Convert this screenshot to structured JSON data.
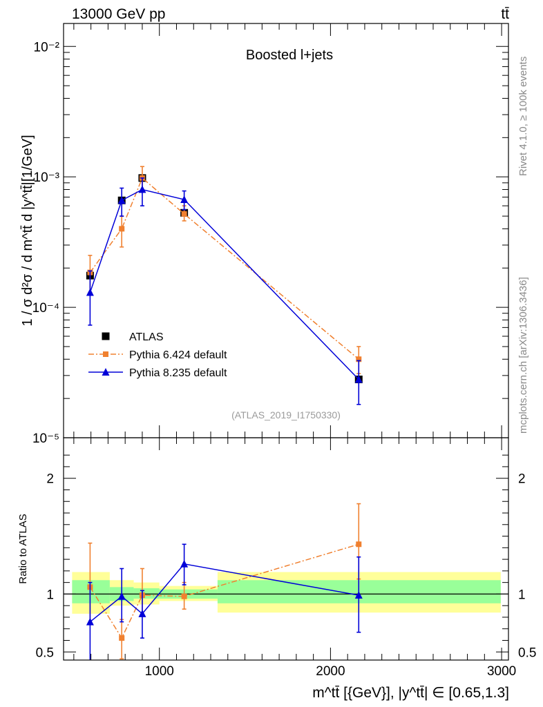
{
  "header": {
    "energy_label": "13000 GeV pp",
    "process_label": "tt̄"
  },
  "side_labels": {
    "rivet": "Rivet 4.1.0, ≥ 100k events",
    "mcplots": "mcplots.cern.ch [arXiv:1306.3436]"
  },
  "chart_data": [
    {
      "panel": "main",
      "type": "scatter",
      "title": "Boosted l+jets",
      "analysis_id": "(ATLAS_2019_I1750330)",
      "ylabel": "1 / σ d²σ / d m^tt̄ d |y^tt̄|[1/GeV]",
      "yscale": "log",
      "ylim": [
        1e-05,
        0.015
      ],
      "xlim": [
        440,
        3040
      ],
      "y_tick_labels": [
        "10⁻⁵",
        "10⁻⁴",
        "10⁻³",
        "10⁻²"
      ],
      "y_tick_values": [
        1e-05,
        0.0001,
        0.001,
        0.01
      ],
      "legend_position": "lower-left",
      "series": [
        {
          "name": "ATLAS",
          "color": "#000000",
          "marker": "square",
          "x": [
            595,
            780,
            900,
            1145,
            2165
          ],
          "y": [
            0.000175,
            0.00066,
            0.00098,
            0.00053,
            2.8e-05
          ]
        },
        {
          "name": "Pythia 6.424 default",
          "color": "#f0802f",
          "marker": "square",
          "line": "dash-dot",
          "x": [
            595,
            780,
            900,
            1145,
            2165
          ],
          "y": [
            0.000185,
            0.0004,
            0.00098,
            0.00052,
            4e-05
          ],
          "yerr_low": [
            0.00013,
            0.00029,
            0.0008,
            0.00046,
            3.1e-05
          ],
          "yerr_high": [
            0.00025,
            0.0005,
            0.0012,
            0.0006,
            5e-05
          ]
        },
        {
          "name": "Pythia 8.235 default",
          "color": "#0000d8",
          "marker": "triangle",
          "line": "solid",
          "x": [
            595,
            780,
            900,
            1145,
            2165
          ],
          "y": [
            0.00013,
            0.00066,
            0.0008,
            0.00067,
            2.8e-05
          ],
          "yerr_low": [
            7.3e-05,
            0.0005,
            0.0006,
            0.00056,
            1.8e-05
          ],
          "yerr_high": [
            0.00019,
            0.00082,
            0.00098,
            0.00078,
            3.9e-05
          ]
        }
      ]
    },
    {
      "panel": "ratio",
      "type": "scatter",
      "ylabel": "Ratio to ATLAS",
      "xlabel": "m^tt̄ [{GeV}], |y^tt̄| ∈ [0.65,1.3]",
      "ylim": [
        0.43,
        2.35
      ],
      "xlim": [
        440,
        3040
      ],
      "x_ticks": [
        1000,
        2000,
        3000
      ],
      "x_tick_labels": [
        "1000",
        "2000",
        "3000"
      ],
      "y_tick_labels": [
        "0.5",
        "1",
        "2"
      ],
      "y_tick_values": [
        0.5,
        1,
        2
      ],
      "uncertainty_bands": {
        "bins": [
          {
            "x_low": 490,
            "x_high": 710,
            "inner_low": 0.92,
            "inner_high": 1.12,
            "outer_low": 0.83,
            "outer_high": 1.19
          },
          {
            "x_low": 710,
            "x_high": 850,
            "inner_low": 0.94,
            "inner_high": 1.06,
            "outer_low": 0.9,
            "outer_high": 1.12
          },
          {
            "x_low": 850,
            "x_high": 1000,
            "inner_low": 0.96,
            "inner_high": 1.05,
            "outer_low": 0.91,
            "outer_high": 1.1
          },
          {
            "x_low": 1000,
            "x_high": 1340,
            "inner_low": 0.96,
            "inner_high": 1.04,
            "outer_low": 0.94,
            "outer_high": 1.07
          },
          {
            "x_low": 1340,
            "x_high": 2995,
            "inner_low": 0.92,
            "inner_high": 1.12,
            "outer_low": 0.84,
            "outer_high": 1.19
          }
        ],
        "inner_color": "#99ff99",
        "outer_color": "#ffff99"
      },
      "series": [
        {
          "name": "Pythia 6.424 default",
          "color": "#f0802f",
          "x": [
            595,
            780,
            900,
            1145,
            2165
          ],
          "y": [
            1.06,
            0.62,
            0.99,
            0.98,
            1.43
          ],
          "yerr_low": [
            0.75,
            0.44,
            0.81,
            0.87,
            1.13
          ],
          "yerr_high": [
            1.44,
            0.78,
            1.22,
            1.1,
            1.78
          ]
        },
        {
          "name": "Pythia 8.235 default",
          "color": "#0000d8",
          "x": [
            595,
            780,
            900,
            1145,
            2165
          ],
          "y": [
            0.76,
            0.98,
            0.83,
            1.26,
            0.99
          ],
          "yerr_low": [
            0.42,
            0.76,
            0.62,
            1.08,
            0.67
          ],
          "yerr_high": [
            1.1,
            1.22,
            1.03,
            1.43,
            1.32
          ]
        }
      ]
    }
  ]
}
